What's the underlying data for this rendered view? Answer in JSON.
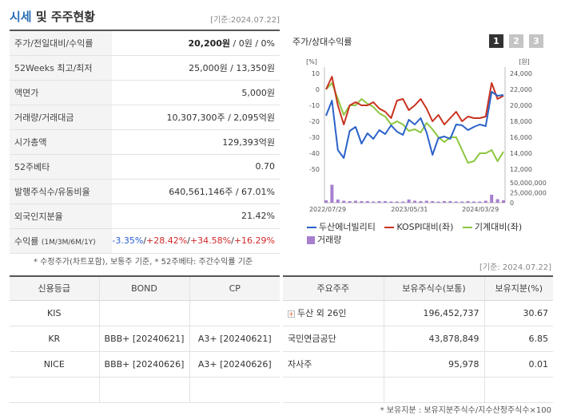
{
  "header": {
    "title_accent": "시세",
    "title_rest": " 및 주주현황",
    "date": "[기준:2024.07.22]"
  },
  "info": {
    "rows": [
      {
        "label": "주가/전일대비/수익률",
        "v1": "20,200원",
        "v2": " / 0원 / 0%"
      },
      {
        "label": "52Weeks 최고/최저",
        "v1": "25,000원 / 13,350원"
      },
      {
        "label": "액면가",
        "v1": "5,000원"
      },
      {
        "label": "거래량/거래대금",
        "v1": "10,307,300주 / 2,095억원"
      },
      {
        "label": "시가총액",
        "v1": "129,393억원"
      },
      {
        "label": "52주베타",
        "v1": "0.70"
      },
      {
        "label": "발행주식수/유동비율",
        "v1": "640,561,146주 / 67.01%"
      },
      {
        "label": "외국인지분율",
        "v1": "21.42%"
      }
    ],
    "returns": {
      "label": "수익률",
      "label_small": "(1M/3M/6M/1Y)",
      "r1": "-3.35%",
      "r2": "+28.42%",
      "r3": "+34.58%",
      "r4": "+16.29%",
      "sep": "/"
    }
  },
  "footnote1": "* 수정주가(차트포함), 보통주 기준, * 52주베타: 주간수익률 기준",
  "date2": "[기준: 2024.07.22]",
  "chart": {
    "title": "주가/상대수익률",
    "tabs": [
      "1",
      "2",
      "3"
    ],
    "active_tab": "1"
  },
  "chart_data": {
    "type": "line",
    "left_axis": {
      "unit": "[%]",
      "ticks": [
        10,
        0,
        -10,
        -20,
        -30,
        -40,
        -50
      ],
      "range": [
        -50,
        10
      ]
    },
    "right_axis": {
      "unit": "[원]",
      "ticks": [
        24000,
        22000,
        20000,
        18000,
        16000,
        14000,
        12000
      ],
      "range": [
        12000,
        24000
      ],
      "tick_labels": [
        "24,000",
        "22,000",
        "20,000",
        "18,000",
        "16,000",
        "14,000",
        "12,000"
      ]
    },
    "volume_axis": {
      "ticks": [
        50000000,
        25000000,
        0
      ],
      "tick_labels": [
        "50,000,000",
        "25,000,000",
        "0"
      ]
    },
    "x_labels": [
      "2022/07/29",
      "2023/05/31",
      "2024/03/29"
    ],
    "colors": {
      "price": "#2a62c9",
      "kospi": "#c9321f",
      "machine": "#8cc63f",
      "volume": "#a77fcf"
    },
    "series": [
      {
        "name": "두산에너빌리티",
        "axis": "right",
        "values": [
          18700,
          20600,
          14400,
          13400,
          16800,
          17300,
          15200,
          16500,
          15800,
          16900,
          16400,
          17500,
          16700,
          16300,
          18200,
          17600,
          18400,
          16600,
          13800,
          15900,
          16100,
          15800,
          17600,
          17500,
          16900,
          17300,
          17600,
          17400,
          21700,
          21200,
          21300
        ]
      },
      {
        "name": "KOSPI대비(좌)",
        "axis": "left",
        "values": [
          0,
          8,
          -10,
          -22,
          -10,
          -8,
          -10,
          -10,
          -8,
          -12,
          -14,
          -18,
          -7,
          -6,
          -13,
          -10,
          -6,
          -12,
          -20,
          -16,
          -22,
          -18,
          -14,
          -20,
          -17,
          -18,
          -18,
          -17,
          4,
          -6,
          -4
        ]
      },
      {
        "name": "기계대비(좌)",
        "axis": "left",
        "values": [
          0,
          4,
          -6,
          -16,
          -10,
          -10,
          -6,
          -9,
          -11,
          -15,
          -17,
          -22,
          -20,
          -22,
          -26,
          -25,
          -27,
          -21,
          -25,
          -30,
          -33,
          -30,
          -30,
          -38,
          -46,
          -45,
          -40,
          -40,
          -38,
          -45,
          -39
        ]
      },
      {
        "name": "거래량",
        "axis": "volume",
        "values": [
          6,
          45,
          8,
          5,
          4,
          5,
          4,
          4,
          3,
          4,
          4,
          3,
          3,
          3,
          8,
          5,
          4,
          5,
          4,
          3,
          4,
          4,
          3,
          3,
          4,
          3,
          3,
          5,
          20,
          9,
          6
        ]
      }
    ]
  },
  "legend": [
    "두산에너빌리티",
    "KOSPI대비(좌)",
    "기계대비(좌)",
    "거래량"
  ],
  "credit": {
    "headers": [
      "신용등급",
      "BOND",
      "CP"
    ],
    "rows": [
      [
        "KIS",
        "",
        ""
      ],
      [
        "KR",
        "BBB+ [20240621]",
        "A3+ [20240621]"
      ],
      [
        "NICE",
        "BBB+ [20240626]",
        "A3+ [20240626]"
      ],
      [
        "",
        "",
        ""
      ]
    ]
  },
  "holders": {
    "headers": [
      "주요주주",
      "보유주식수(보통)",
      "보유지분(%)"
    ],
    "rows": [
      [
        "두산 외 26인",
        "196,452,737",
        "30.67"
      ],
      [
        "국민연금공단",
        "43,878,849",
        "6.85"
      ],
      [
        "자사주",
        "95,978",
        "0.01"
      ],
      [
        "",
        "",
        ""
      ]
    ]
  },
  "footnote2": "* 보유지분 : 보유지분주식수/지수산정주식수×100"
}
